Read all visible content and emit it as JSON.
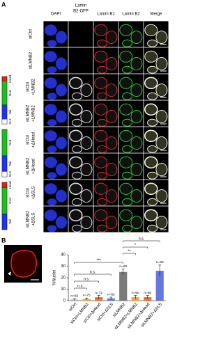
{
  "panel_a": {
    "label": "A",
    "columns": [
      [
        "DAPI"
      ],
      [
        "Lamin",
        "B2-GFP"
      ],
      [
        "Lamin B1"
      ],
      [
        "Lamin B2"
      ],
      [
        "Merge"
      ]
    ],
    "rows": [
      [
        "siCtrl"
      ],
      [
        "siLMNB2"
      ],
      [
        "siCtrl",
        "+LMNB2"
      ],
      [
        "siLMNB2",
        "+LMNB2"
      ],
      [
        "siCtrl",
        "+ΔHead"
      ],
      [
        "siLMNB2",
        "+ΔHead"
      ],
      [
        "siCtrl",
        "+ΔSLS"
      ],
      [
        "siLMNB2",
        "+ΔSLS"
      ]
    ],
    "constructs": [
      [
        "Head",
        "Rod",
        "Tail",
        "SLS"
      ],
      [
        "Rod",
        "Tail",
        "SLS"
      ],
      [
        "Head",
        "Rod",
        "Tail"
      ]
    ]
  },
  "panel_b_label": "B",
  "chart_data": {
    "type": "bar",
    "y_label": "%Nuclei",
    "categories": [
      "siCtrl",
      "siCtrl+LMNB2",
      "siCtrl+ΔHead",
      "siCtrl+ΔSLS",
      "siLMNB2",
      "siLMNB2+LMNB2",
      "siLMNB2+ΔHead",
      "siLMNB2+ΔSLS"
    ],
    "values": [
      1,
      1.5,
      3,
      2,
      25,
      3,
      3,
      26
    ],
    "errors": [
      0.8,
      0.8,
      1.5,
      1,
      2.5,
      1.5,
      1.5,
      5
    ],
    "value_labels": [
      "n=60",
      "n=75",
      "n=72",
      "n=62",
      "n=60",
      "n=60",
      "n=60",
      "n=60"
    ],
    "colors": [
      "#b8b8b8",
      "#f2a33a",
      "#e8712f",
      "#6677dd",
      "#7a7a7a",
      "#f2a33a",
      "#e8712f",
      "#6677dd"
    ],
    "ylim": [
      0,
      40
    ],
    "yticks": [
      0,
      10,
      20,
      30,
      40
    ],
    "annotations": [
      "n.s.",
      "n.s.",
      "n.s.",
      "***",
      "**",
      "*",
      "n.s."
    ]
  }
}
